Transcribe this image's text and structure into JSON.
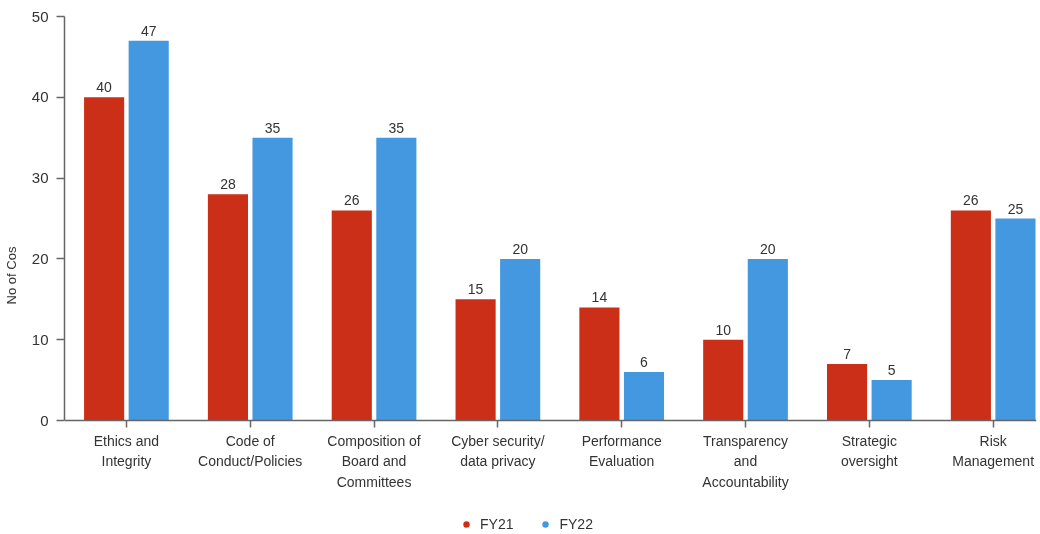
{
  "chart_data": {
    "type": "bar",
    "ylabel": "No of Cos",
    "categories": [
      "Ethics and\nIntegrity",
      "Code of\nConduct/Policies",
      "Composition of\nBoard and\nCommittees",
      "Cyber security/\ndata privacy",
      "Performance\nEvaluation",
      "Transparency\nand\nAccountability",
      "Strategic\noversight",
      "Risk\nManagement"
    ],
    "series": [
      {
        "name": "FY21",
        "color": "#cb2f17",
        "values": [
          40,
          28,
          26,
          15,
          14,
          10,
          7,
          26
        ]
      },
      {
        "name": "FY22",
        "color": "#4498e0",
        "values": [
          47,
          35,
          35,
          20,
          6,
          20,
          5,
          25
        ]
      }
    ],
    "ylim": [
      0,
      50
    ],
    "yticks": [
      0,
      10,
      20,
      30,
      40,
      50
    ],
    "data_labels": true,
    "legend": "bottom"
  }
}
